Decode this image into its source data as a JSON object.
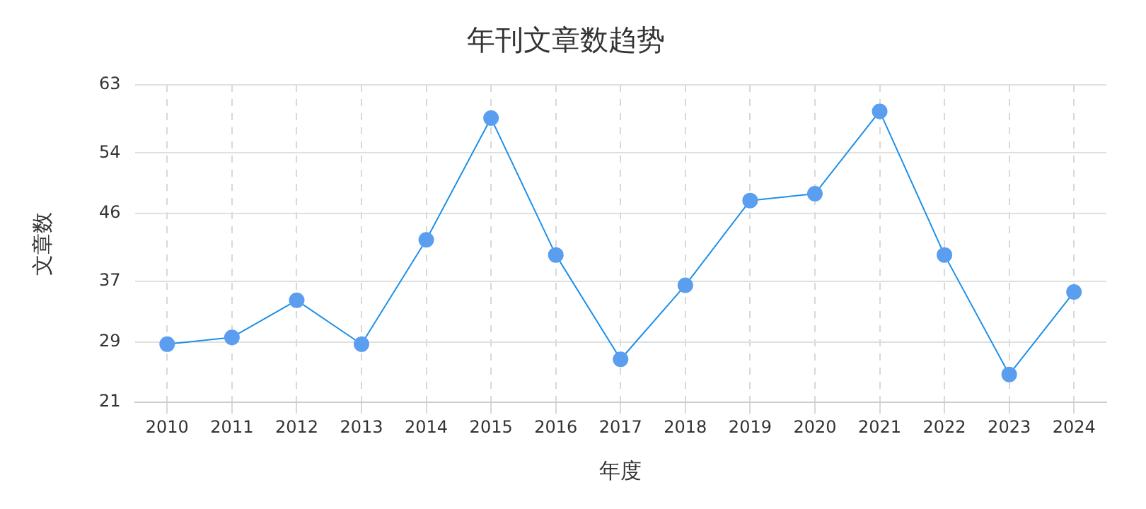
{
  "chart_data": {
    "type": "line",
    "title": "年刊文章数趋势",
    "xlabel": "年度",
    "ylabel": "文章数",
    "categories": [
      "2010",
      "2011",
      "2012",
      "2013",
      "2014",
      "2015",
      "2016",
      "2017",
      "2018",
      "2019",
      "2020",
      "2021",
      "2022",
      "2023",
      "2024"
    ],
    "series": [
      {
        "color": "#5b9ef0",
        "values": [
          28.7,
          29.6,
          34.5,
          28.7,
          42.5,
          58.6,
          40.5,
          26.7,
          36.5,
          47.7,
          48.6,
          59.5,
          40.5,
          24.7,
          35.6
        ]
      }
    ],
    "ylim": [
      21,
      63
    ],
    "yticks": [
      21,
      29,
      37,
      46,
      54,
      63
    ],
    "grid": true,
    "legend": false,
    "marker": "circle",
    "line_style": "solid"
  }
}
